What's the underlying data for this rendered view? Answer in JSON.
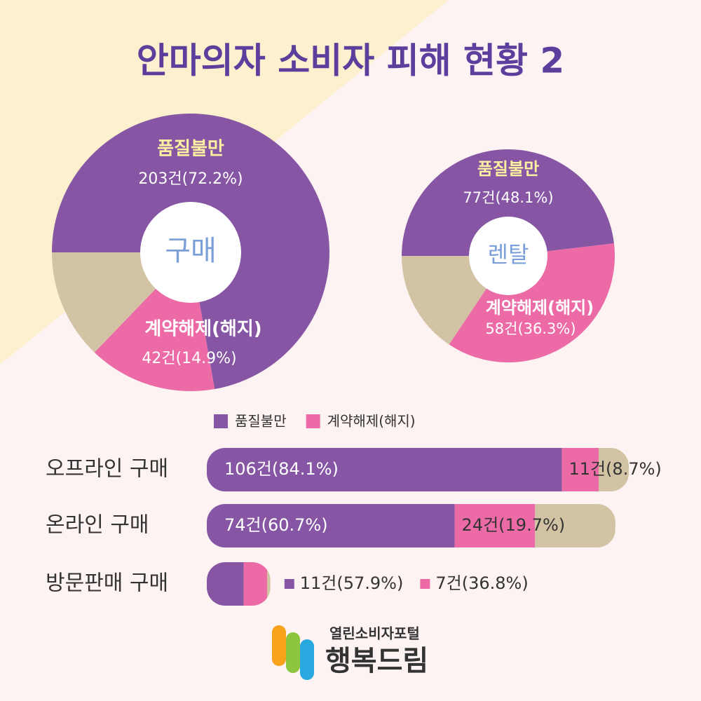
{
  "title": "안마의자 소비자 피해 현황 2",
  "chart_data": [
    {
      "type": "pie",
      "center_label": "구매",
      "categories": [
        "품질불만",
        "계약해제(해지)",
        null
      ],
      "values": [
        203,
        42,
        36
      ],
      "value_labels": [
        "203건(72.2%)",
        "42건(14.9%)",
        null
      ],
      "colors": [
        "#8656a4",
        "#ec6ba7",
        "#d3c3a5"
      ]
    },
    {
      "type": "pie",
      "center_label": "렌탈",
      "categories": [
        "품질불만",
        "계약해제(해지)",
        null
      ],
      "values": [
        77,
        58,
        25
      ],
      "value_labels": [
        "77건(48.1%)",
        "58건(36.3%)",
        null
      ],
      "colors": [
        "#8656a4",
        "#ec6ba7",
        "#d3c3a5"
      ]
    },
    {
      "type": "bar",
      "orientation": "horizontal",
      "stacked": true,
      "categories": [
        "오프라인 구매",
        "온라인 구매",
        "방문판매 구매"
      ],
      "series": [
        {
          "name": "품질불만",
          "color": "#8656a4",
          "values": [
            106,
            74,
            11
          ],
          "value_labels": [
            "106건(84.1%)",
            "74건(60.7%)",
            "11건(57.9%)"
          ]
        },
        {
          "name": "계약해제(해지)",
          "color": "#ec6ba7",
          "values": [
            11,
            24,
            7
          ],
          "value_labels": [
            "11건(8.7%)",
            "24건(19.7%)",
            "7건(36.8%)"
          ]
        },
        {
          "name": null,
          "color": "#d3c3a5",
          "values": [
            9,
            24,
            1
          ]
        }
      ]
    }
  ],
  "logo": {
    "subtitle": "열린소비자포털",
    "name": "행복드림"
  }
}
